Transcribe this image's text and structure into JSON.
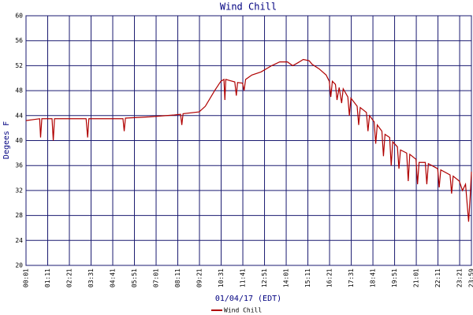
{
  "chart_data": {
    "type": "line",
    "title": "Wind Chill",
    "x_label": "01/04/17 (EDT)",
    "y_label": "Degees F",
    "ylim": [
      20,
      60
    ],
    "yticks": [
      20,
      24,
      28,
      32,
      36,
      40,
      44,
      48,
      52,
      56,
      60
    ],
    "xlim": [
      1,
      1439
    ],
    "xticks": [
      {
        "value": 1,
        "label": "00:01"
      },
      {
        "value": 71,
        "label": "01:11"
      },
      {
        "value": 141,
        "label": "02:21"
      },
      {
        "value": 211,
        "label": "03:31"
      },
      {
        "value": 281,
        "label": "04:41"
      },
      {
        "value": 351,
        "label": "05:51"
      },
      {
        "value": 421,
        "label": "07:01"
      },
      {
        "value": 491,
        "label": "08:11"
      },
      {
        "value": 561,
        "label": "09:21"
      },
      {
        "value": 631,
        "label": "10:31"
      },
      {
        "value": 701,
        "label": "11:41"
      },
      {
        "value": 771,
        "label": "12:51"
      },
      {
        "value": 841,
        "label": "14:01"
      },
      {
        "value": 911,
        "label": "15:11"
      },
      {
        "value": 981,
        "label": "16:21"
      },
      {
        "value": 1051,
        "label": "17:31"
      },
      {
        "value": 1121,
        "label": "18:41"
      },
      {
        "value": 1191,
        "label": "19:51"
      },
      {
        "value": 1261,
        "label": "21:01"
      },
      {
        "value": 1331,
        "label": "22:11"
      },
      {
        "value": 1401,
        "label": "23:21"
      },
      {
        "value": 1439,
        "label": "23:59"
      }
    ],
    "grid": true,
    "legend": "bottom",
    "x": [
      1,
      30,
      45,
      48,
      52,
      85,
      89,
      93,
      195,
      200,
      204,
      314,
      318,
      322,
      400,
      480,
      500,
      504,
      508,
      560,
      580,
      610,
      630,
      640,
      643,
      646,
      660,
      675,
      680,
      684,
      700,
      705,
      710,
      730,
      760,
      794,
      820,
      845,
      862,
      880,
      896,
      915,
      925,
      947,
      970,
      980,
      985,
      990,
      1000,
      1005,
      1012,
      1020,
      1025,
      1040,
      1045,
      1050,
      1070,
      1075,
      1080,
      1100,
      1105,
      1110,
      1125,
      1130,
      1135,
      1150,
      1155,
      1160,
      1175,
      1180,
      1185,
      1200,
      1205,
      1210,
      1230,
      1235,
      1240,
      1260,
      1265,
      1270,
      1290,
      1295,
      1300,
      1330,
      1335,
      1340,
      1370,
      1375,
      1380,
      1400,
      1410,
      1420,
      1430,
      1435,
      1439
    ],
    "series": [
      {
        "name": "Wind Chill",
        "color": "#b00000",
        "values": [
          43.2,
          43.4,
          43.5,
          40.5,
          43.5,
          43.5,
          40,
          43.5,
          43.5,
          40.5,
          43.5,
          43.5,
          41.5,
          43.6,
          43.8,
          44.1,
          44.2,
          42.5,
          44.3,
          44.6,
          45.5,
          48,
          49.5,
          49.8,
          46.5,
          49.8,
          49.6,
          49.4,
          47.2,
          49.3,
          49.2,
          48,
          49.8,
          50.5,
          51,
          52,
          52.6,
          52.6,
          52,
          52.5,
          53,
          52.8,
          52.2,
          51.5,
          50.5,
          49.5,
          47,
          49.5,
          49,
          46.5,
          48.5,
          46,
          48.3,
          47,
          44,
          46.8,
          45.5,
          42.5,
          45.3,
          44.5,
          41.5,
          44,
          43,
          39.5,
          42.5,
          41.5,
          37.5,
          41,
          40.5,
          36,
          39.8,
          39,
          35.5,
          38.5,
          38,
          33.5,
          37.8,
          37,
          33,
          36.5,
          36.5,
          33,
          36.3,
          35.5,
          32.5,
          35.3,
          34.5,
          31.5,
          34.3,
          33.5,
          32,
          33,
          27,
          31,
          35
        ]
      }
    ]
  }
}
